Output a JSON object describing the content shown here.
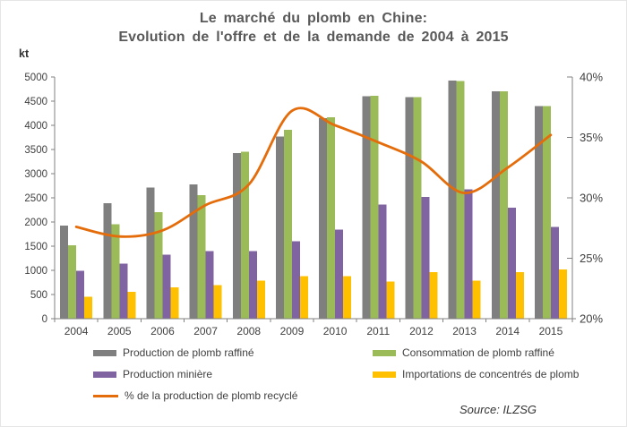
{
  "header": {
    "title_line1": "Le marché du plomb en Chine:",
    "title_line2": "Evolution de l'offre et de la demande de 2004 à 2015"
  },
  "footer": {
    "source": "Source: ILZSG"
  },
  "chart_data": {
    "type": "combo",
    "bar_layout": "grouped",
    "grid": false,
    "legend_position": "bottom",
    "categories": [
      "2004",
      "2005",
      "2006",
      "2007",
      "2008",
      "2009",
      "2010",
      "2011",
      "2012",
      "2013",
      "2014",
      "2015"
    ],
    "bar_series": [
      {
        "name": "Production de plomb raffiné",
        "color": "#7F7F7F",
        "values": [
          1930,
          2390,
          2710,
          2780,
          3430,
          3770,
          4150,
          4600,
          4580,
          4930,
          4700,
          4400
        ]
      },
      {
        "name": "Consommation de plomb raffiné",
        "color": "#9BBB59",
        "values": [
          1520,
          1950,
          2200,
          2560,
          3450,
          3910,
          4170,
          4610,
          4580,
          4920,
          4700,
          4400
        ]
      },
      {
        "name": "Production minière",
        "color": "#8064A2",
        "values": [
          990,
          1140,
          1320,
          1400,
          1400,
          1600,
          1840,
          2360,
          2520,
          2680,
          2300,
          1900
        ]
      },
      {
        "name": "Importations de concentrés de plomb",
        "color": "#FFC000",
        "values": [
          450,
          560,
          650,
          690,
          790,
          880,
          880,
          770,
          960,
          790,
          960,
          1020
        ]
      }
    ],
    "line_series": {
      "name": "% de la production de plomb recyclé",
      "color": "#E46C0A",
      "axis": "right",
      "values": [
        27.6,
        26.8,
        27.3,
        29.4,
        31.1,
        37.2,
        36.0,
        34.6,
        33.0,
        30.4,
        32.5,
        35.2
      ]
    },
    "y_left": {
      "label": "kt",
      "min": 0,
      "max": 5000,
      "step": 500,
      "ticks": [
        "0",
        "500",
        "1000",
        "1500",
        "2000",
        "2500",
        "3000",
        "3500",
        "4000",
        "4500",
        "5000"
      ]
    },
    "y_right": {
      "min": 20,
      "max": 40,
      "step": 5,
      "suffix": "%",
      "ticks": [
        "20%",
        "25%",
        "30%",
        "35%",
        "40%"
      ]
    },
    "axis_color": "#808080"
  }
}
